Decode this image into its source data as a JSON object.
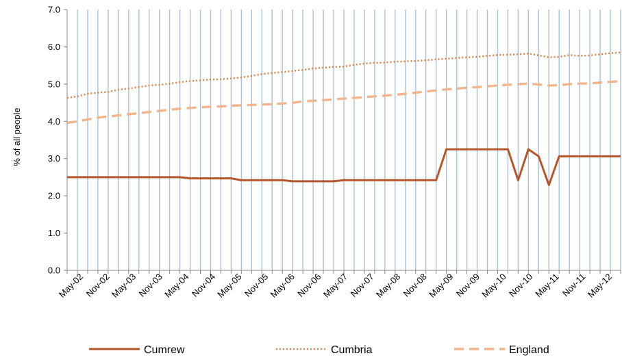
{
  "chart_data": {
    "type": "line",
    "ylabel": "% of all people",
    "ylim": [
      0,
      7
    ],
    "yticks": [
      "0.0",
      "1.0",
      "2.0",
      "3.0",
      "4.0",
      "5.0",
      "6.0",
      "7.0"
    ],
    "xtick_labels": [
      "May-02",
      "Nov-02",
      "May-03",
      "Nov-03",
      "May-04",
      "Nov-04",
      "May-05",
      "Nov-05",
      "May-06",
      "Nov-06",
      "May-07",
      "Nov-07",
      "May-08",
      "Nov-08",
      "May-09",
      "Nov-09",
      "May-10",
      "Nov-10",
      "May-11",
      "Nov-11",
      "May-12"
    ],
    "vertical_grid": true,
    "horizontal_grid": false,
    "legend_position": "bottom",
    "series": [
      {
        "name": "Cumrew",
        "style": "solid",
        "color": "#B5562A",
        "values": [
          2.5,
          2.5,
          2.5,
          2.5,
          2.5,
          2.5,
          2.5,
          2.5,
          2.5,
          2.5,
          2.5,
          2.5,
          2.47,
          2.47,
          2.47,
          2.47,
          2.47,
          2.42,
          2.42,
          2.42,
          2.42,
          2.42,
          2.39,
          2.39,
          2.39,
          2.39,
          2.39,
          2.42,
          2.42,
          2.42,
          2.42,
          2.42,
          2.42,
          2.42,
          2.42,
          2.42,
          2.42,
          3.25,
          3.25,
          3.25,
          3.25,
          3.25,
          3.25,
          3.25,
          2.42,
          3.25,
          3.06,
          2.29,
          3.06,
          3.06,
          3.06,
          3.06,
          3.06,
          3.06,
          3.06
        ]
      },
      {
        "name": "Cumbria",
        "style": "dotted",
        "color": "#E2844A",
        "values": [
          4.63,
          4.67,
          4.74,
          4.77,
          4.79,
          4.85,
          4.88,
          4.92,
          4.96,
          4.98,
          5.01,
          5.05,
          5.08,
          5.1,
          5.12,
          5.13,
          5.15,
          5.18,
          5.22,
          5.27,
          5.3,
          5.32,
          5.35,
          5.38,
          5.42,
          5.44,
          5.46,
          5.47,
          5.52,
          5.55,
          5.57,
          5.58,
          5.6,
          5.61,
          5.62,
          5.64,
          5.66,
          5.68,
          5.7,
          5.72,
          5.73,
          5.76,
          5.78,
          5.79,
          5.8,
          5.82,
          5.77,
          5.72,
          5.73,
          5.78,
          5.76,
          5.77,
          5.8,
          5.83,
          5.85
        ]
      },
      {
        "name": "England",
        "style": "dashed",
        "color": "#F2B48A",
        "values": [
          3.96,
          4.0,
          4.05,
          4.1,
          4.13,
          4.16,
          4.19,
          4.22,
          4.25,
          4.28,
          4.31,
          4.34,
          4.36,
          4.38,
          4.39,
          4.4,
          4.42,
          4.43,
          4.44,
          4.45,
          4.46,
          4.48,
          4.5,
          4.53,
          4.55,
          4.57,
          4.59,
          4.61,
          4.63,
          4.65,
          4.67,
          4.69,
          4.71,
          4.74,
          4.77,
          4.8,
          4.83,
          4.86,
          4.88,
          4.9,
          4.92,
          4.94,
          4.96,
          4.98,
          5.0,
          5.01,
          4.99,
          4.96,
          4.97,
          5.0,
          5.01,
          5.02,
          5.04,
          5.06,
          5.08
        ]
      }
    ]
  }
}
